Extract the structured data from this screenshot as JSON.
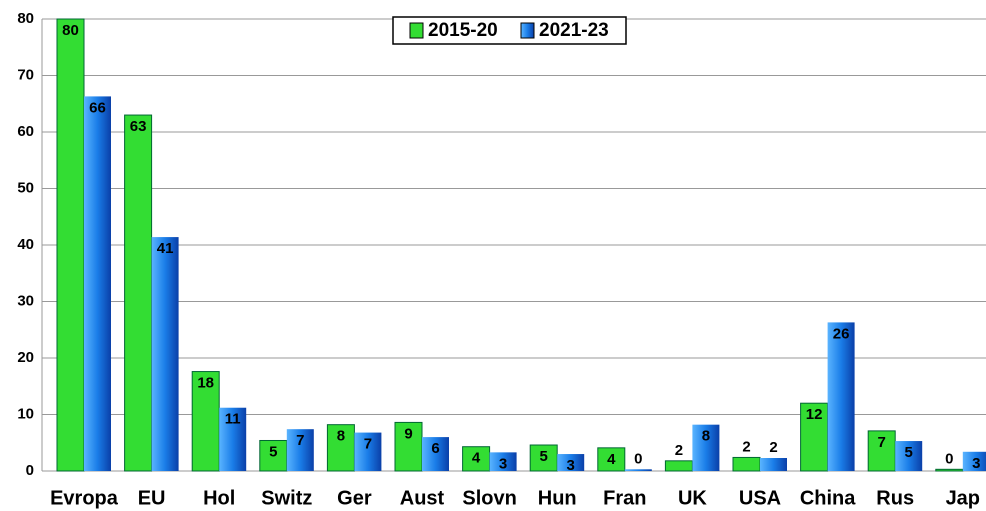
{
  "chart_data": {
    "type": "bar",
    "categories": [
      "Evropa",
      "EU",
      "Hol",
      "Switz",
      "Ger",
      "Aust",
      "Slovn",
      "Hun",
      "Fran",
      "UK",
      "USA",
      "China",
      "Rus",
      "Jap"
    ],
    "series": [
      {
        "name": "2015-20",
        "color": "#33dd33",
        "values": [
          80,
          63,
          17.6,
          5.4,
          8.2,
          8.6,
          4.3,
          4.6,
          4.1,
          1.8,
          2.4,
          12.0,
          7.1,
          0.3
        ],
        "value_labels": [
          "80",
          "63",
          "18",
          "5",
          "8",
          "9",
          "4",
          "5",
          "4",
          "2",
          "2",
          "12",
          "7",
          "0"
        ]
      },
      {
        "name": "2021-23",
        "color": "#1a7de8",
        "values": [
          66.3,
          41.4,
          11.2,
          7.4,
          6.8,
          6.0,
          3.3,
          3.0,
          0.3,
          8.2,
          2.3,
          26.3,
          5.3,
          3.4
        ],
        "value_labels": [
          "66",
          "41",
          "11",
          "7",
          "7",
          "6",
          "3",
          "3",
          "0",
          "8",
          "2",
          "26",
          "5",
          "3"
        ]
      }
    ],
    "ylim": [
      0,
      80
    ],
    "yticks": [
      0,
      10,
      20,
      30,
      40,
      50,
      60,
      70,
      80
    ],
    "grid": true,
    "legend": "top"
  }
}
